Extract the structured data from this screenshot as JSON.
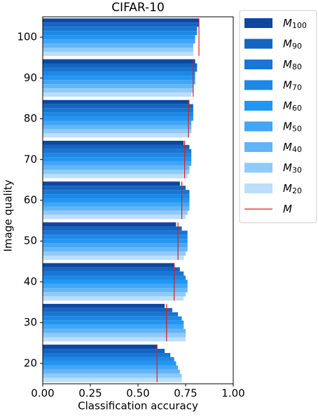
{
  "chart_data": {
    "type": "grouped-hbar",
    "title": "CIFAR-10",
    "x_label": "Classification accuracy",
    "y_label": "Image quality",
    "categories": [
      20,
      30,
      40,
      50,
      60,
      70,
      80,
      90,
      100
    ],
    "xlim": [
      0,
      1
    ],
    "xticks": [
      {
        "value": 0,
        "label": "0.00"
      },
      {
        "value": 0.25,
        "label": "0.25"
      },
      {
        "value": 0.5,
        "label": "0.50"
      },
      {
        "value": 0.75,
        "label": "0.75"
      },
      {
        "value": 1,
        "label": "1.00"
      }
    ],
    "legend": "outside-upper-right",
    "series": [
      {
        "name": "M100",
        "color": "#0d47a1",
        "style": "bar",
        "values": [
          0.6,
          0.64,
          0.69,
          0.7,
          0.72,
          0.74,
          0.77,
          0.8,
          0.82
        ]
      },
      {
        "name": "M90",
        "color": "#1565c0",
        "style": "bar",
        "values": [
          0.64,
          0.68,
          0.72,
          0.73,
          0.75,
          0.77,
          0.79,
          0.81,
          0.82
        ]
      },
      {
        "name": "M80",
        "color": "#1976d2",
        "style": "bar",
        "values": [
          0.67,
          0.71,
          0.74,
          0.76,
          0.77,
          0.78,
          0.79,
          0.81,
          0.81
        ]
      },
      {
        "name": "M70",
        "color": "#1e88e5",
        "style": "bar",
        "values": [
          0.69,
          0.73,
          0.75,
          0.76,
          0.77,
          0.78,
          0.79,
          0.8,
          0.81
        ]
      },
      {
        "name": "M60",
        "color": "#2196f3",
        "style": "bar",
        "values": [
          0.7,
          0.74,
          0.76,
          0.76,
          0.77,
          0.78,
          0.79,
          0.8,
          0.8
        ]
      },
      {
        "name": "M50",
        "color": "#42a5f5",
        "style": "bar",
        "values": [
          0.71,
          0.74,
          0.76,
          0.76,
          0.77,
          0.78,
          0.78,
          0.8,
          0.8
        ]
      },
      {
        "name": "M40",
        "color": "#64b5f6",
        "style": "bar",
        "values": [
          0.72,
          0.75,
          0.76,
          0.76,
          0.77,
          0.77,
          0.78,
          0.79,
          0.79
        ]
      },
      {
        "name": "M30",
        "color": "#90caf9",
        "style": "bar",
        "values": [
          0.73,
          0.75,
          0.75,
          0.75,
          0.76,
          0.77,
          0.78,
          0.79,
          0.79
        ]
      },
      {
        "name": "M20",
        "color": "#bbdefb",
        "style": "bar",
        "values": [
          0.73,
          0.75,
          0.74,
          0.74,
          0.75,
          0.76,
          0.77,
          0.78,
          0.79
        ]
      },
      {
        "name": "M",
        "color": "#e31a1c",
        "style": "vline",
        "values": [
          0.6,
          0.65,
          0.69,
          0.71,
          0.73,
          0.745,
          0.765,
          0.79,
          0.82
        ]
      }
    ]
  }
}
